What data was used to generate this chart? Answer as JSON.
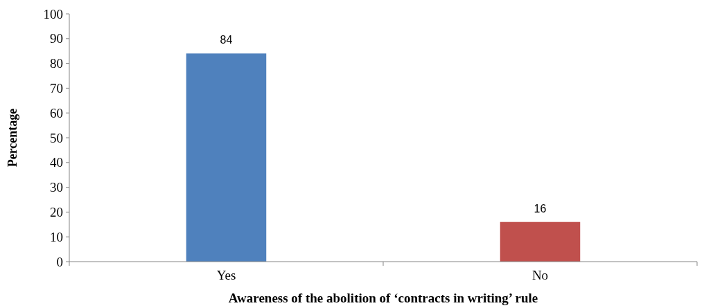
{
  "chart_data": {
    "type": "bar",
    "categories": [
      "Yes",
      "No"
    ],
    "values": [
      84,
      16
    ],
    "colors": [
      "#4f81bd",
      "#c0504d"
    ],
    "ylim": [
      0,
      100
    ],
    "yticks": [
      0,
      10,
      20,
      30,
      40,
      50,
      60,
      70,
      80,
      90,
      100
    ],
    "xlabel": "Awareness of the abolition of ‘contracts in writing’ rule",
    "ylabel": "Percentage",
    "data_labels": true
  }
}
